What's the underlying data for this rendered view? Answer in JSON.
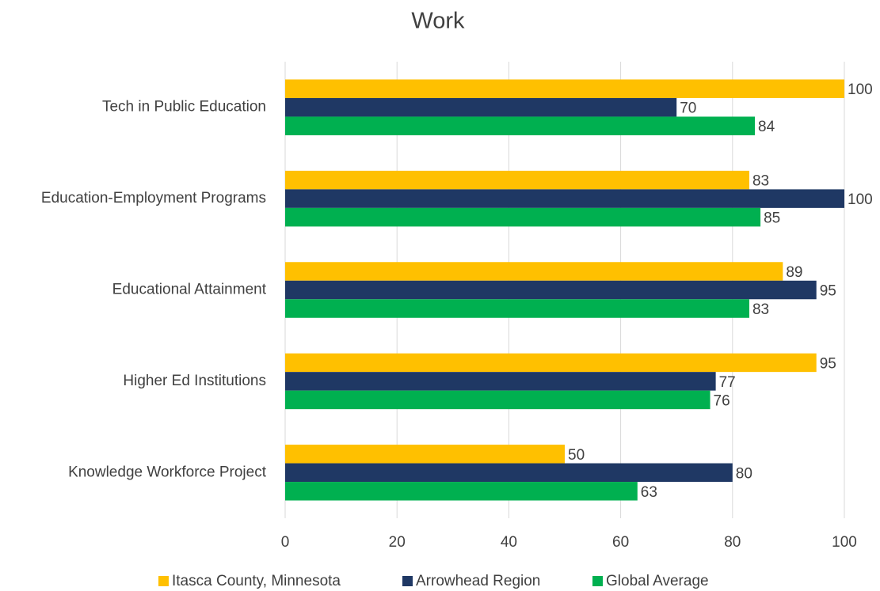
{
  "chart_data": {
    "type": "bar",
    "orientation": "horizontal",
    "title": "Work",
    "categories": [
      "Tech in Public Education",
      "Education-Employment Programs",
      "Educational Attainment",
      "Higher Ed Institutions",
      "Knowledge Workforce Project"
    ],
    "series": [
      {
        "name": "Itasca County, Minnesota",
        "color": "#ffc000",
        "values": [
          100,
          83,
          89,
          95,
          50
        ]
      },
      {
        "name": "Arrowhead Region",
        "color": "#1f3864",
        "values": [
          70,
          100,
          95,
          77,
          80
        ]
      },
      {
        "name": "Global Average",
        "color": "#00b050",
        "values": [
          84,
          85,
          83,
          76,
          63
        ]
      }
    ],
    "xlim": [
      0,
      100
    ],
    "xticks": [
      0,
      20,
      40,
      60,
      80,
      100
    ],
    "grid": true,
    "legend": "bottom"
  }
}
